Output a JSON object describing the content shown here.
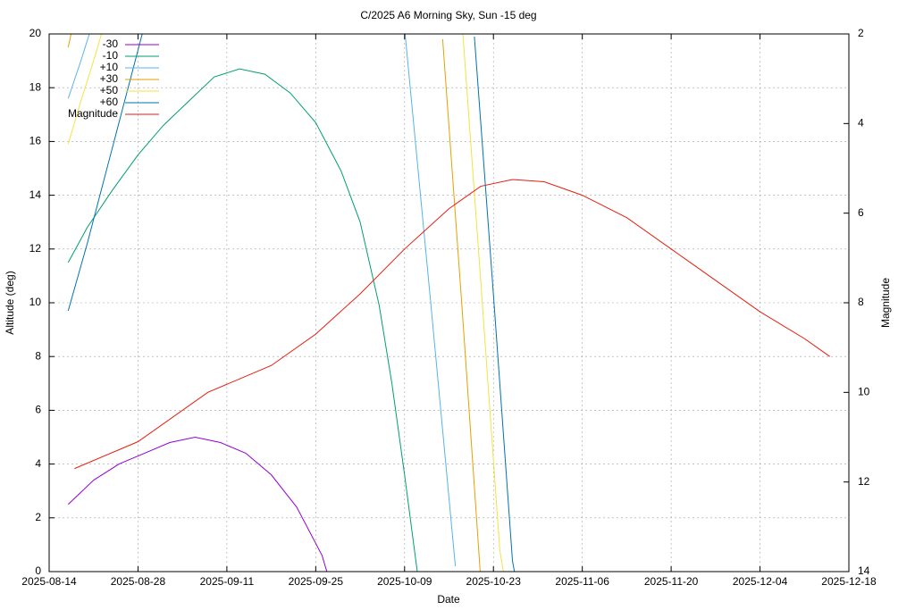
{
  "chart_data": {
    "type": "line",
    "title": "C/2025 A6 Morning Sky, Sun -15 deg",
    "xlabel": "Date",
    "ylabel": "Altitude (deg)",
    "y2label": "Magnitude",
    "xlim": [
      "2025-08-14",
      "2025-12-18"
    ],
    "xticks": [
      "2025-08-14",
      "2025-08-28",
      "2025-09-11",
      "2025-09-25",
      "2025-10-09",
      "2025-10-23",
      "2025-11-06",
      "2025-11-20",
      "2025-12-04",
      "2025-12-18"
    ],
    "ylim": [
      0,
      20
    ],
    "yticks": [
      0,
      2,
      4,
      6,
      8,
      10,
      12,
      14,
      16,
      18,
      20
    ],
    "y2lim": [
      2,
      14
    ],
    "y2ticks": [
      2,
      4,
      6,
      8,
      10,
      12,
      14
    ],
    "y2_reversed": true,
    "grid": true,
    "legend": "top-left",
    "series": [
      {
        "name": "-30",
        "color": "#9400d3",
        "x": [
          "2025-08-17",
          "2025-08-21",
          "2025-08-25",
          "2025-08-29",
          "2025-09-02",
          "2025-09-06",
          "2025-09-10",
          "2025-09-14",
          "2025-09-18",
          "2025-09-22",
          "2025-09-26",
          "2025-09-27"
        ],
        "values": [
          2.5,
          3.4,
          4.0,
          4.4,
          4.8,
          5.0,
          4.8,
          4.4,
          3.6,
          2.4,
          0.6,
          -0.2
        ]
      },
      {
        "name": "-10",
        "color": "#009e73",
        "x": [
          "2025-08-17",
          "2025-08-20",
          "2025-08-24",
          "2025-08-28",
          "2025-09-01",
          "2025-09-05",
          "2025-09-09",
          "2025-09-13",
          "2025-09-17",
          "2025-09-21",
          "2025-09-25",
          "2025-09-29",
          "2025-10-02",
          "2025-10-05",
          "2025-10-07",
          "2025-10-09",
          "2025-10-11"
        ],
        "values": [
          11.5,
          12.8,
          14.2,
          15.5,
          16.6,
          17.5,
          18.4,
          18.7,
          18.5,
          17.8,
          16.7,
          14.9,
          13.0,
          9.9,
          7.0,
          3.6,
          0.0
        ]
      },
      {
        "name": "+10",
        "color": "#56b4e9",
        "x": [
          "2025-08-17",
          "2025-08-19",
          "2025-08-21",
          null,
          "2025-10-09",
          "2025-10-13",
          "2025-10-17"
        ],
        "values": [
          17.6,
          19.0,
          20.5,
          null,
          20.2,
          10.3,
          0.2
        ]
      },
      {
        "name": "+30",
        "color": "#e69f00",
        "x": [
          "2025-08-17",
          "2025-08-18",
          null,
          "2025-10-15",
          "2025-10-18",
          "2025-10-21"
        ],
        "values": [
          19.5,
          20.6,
          null,
          19.8,
          10.0,
          -0.3
        ]
      },
      {
        "name": "+50",
        "color": "#f0e442",
        "x": [
          "2025-08-17",
          "2025-08-19",
          "2025-08-21",
          "2025-08-23",
          null,
          "2025-10-18",
          "2025-10-21",
          "2025-10-24",
          "2025-10-25"
        ],
        "values": [
          15.9,
          17.5,
          19.0,
          20.6,
          null,
          20.6,
          10.8,
          0.8,
          -0.6
        ]
      },
      {
        "name": "+60",
        "color": "#0072b2",
        "x": [
          "2025-08-17",
          "2025-08-20",
          "2025-08-23",
          "2025-08-26",
          "2025-08-29",
          null,
          "2025-10-20",
          "2025-10-23",
          "2025-10-26",
          "2025-10-27"
        ],
        "values": [
          9.7,
          12.2,
          14.9,
          17.6,
          20.3,
          null,
          19.9,
          10.3,
          0.4,
          -0.9
        ]
      },
      {
        "name": "Magnitude",
        "color": "#e51e10",
        "axis": "y2",
        "x": [
          "2025-08-18",
          "2025-08-28",
          "2025-09-08",
          "2025-09-18",
          "2025-09-25",
          "2025-10-02",
          "2025-10-09",
          "2025-10-16",
          "2025-10-21",
          "2025-10-26",
          "2025-10-31",
          "2025-11-06",
          "2025-11-13",
          "2025-11-20",
          "2025-11-27",
          "2025-12-04",
          "2025-12-11",
          "2025-12-15"
        ],
        "values": [
          11.7,
          11.1,
          10.0,
          9.4,
          8.7,
          7.8,
          6.8,
          5.9,
          5.4,
          5.25,
          5.3,
          5.6,
          6.1,
          6.8,
          7.5,
          8.2,
          8.8,
          9.2
        ]
      }
    ]
  }
}
